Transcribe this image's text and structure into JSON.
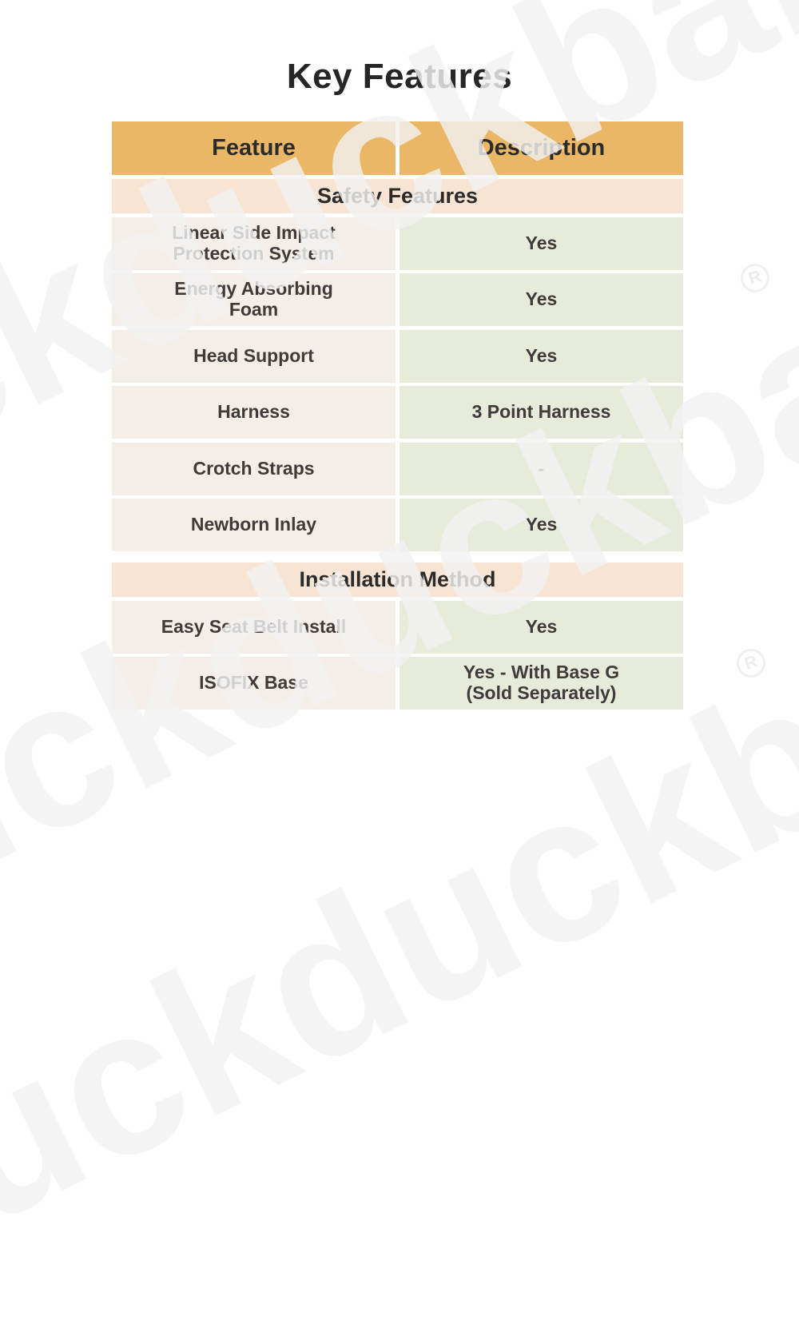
{
  "page": {
    "title": "Key Features"
  },
  "watermark": {
    "text": "duckduckbaby",
    "registered_symbol": "R"
  },
  "colors": {
    "header_bg": "#eab766",
    "section_bg": "#f7e4d3",
    "feature_cell_bg": "#f3eee8",
    "description_cell_bg": "#e6ebda",
    "text_dark": "#2b2b2b",
    "page_bg": "#fefefe",
    "watermark_gray": "#f2f2f2"
  },
  "table": {
    "headers": {
      "feature": "Feature",
      "description": "Description"
    },
    "sections": [
      {
        "title": "Safety Features",
        "rows": [
          {
            "feature": "Linear Side Impact\nProtection System",
            "description": "Yes"
          },
          {
            "feature": "Energy Absorbing\nFoam",
            "description": "Yes"
          },
          {
            "feature": "Head Support",
            "description": "Yes"
          },
          {
            "feature": "Harness",
            "description": "3 Point Harness"
          },
          {
            "feature": "Crotch Straps",
            "description": "-"
          },
          {
            "feature": "Newborn Inlay",
            "description": "Yes"
          }
        ]
      },
      {
        "title": "Installation Method",
        "rows": [
          {
            "feature": "Easy Seat Belt Install",
            "description": "Yes"
          },
          {
            "feature": "ISOFIX Base",
            "description": "Yes - With Base G\n(Sold Separately)"
          }
        ]
      }
    ]
  }
}
